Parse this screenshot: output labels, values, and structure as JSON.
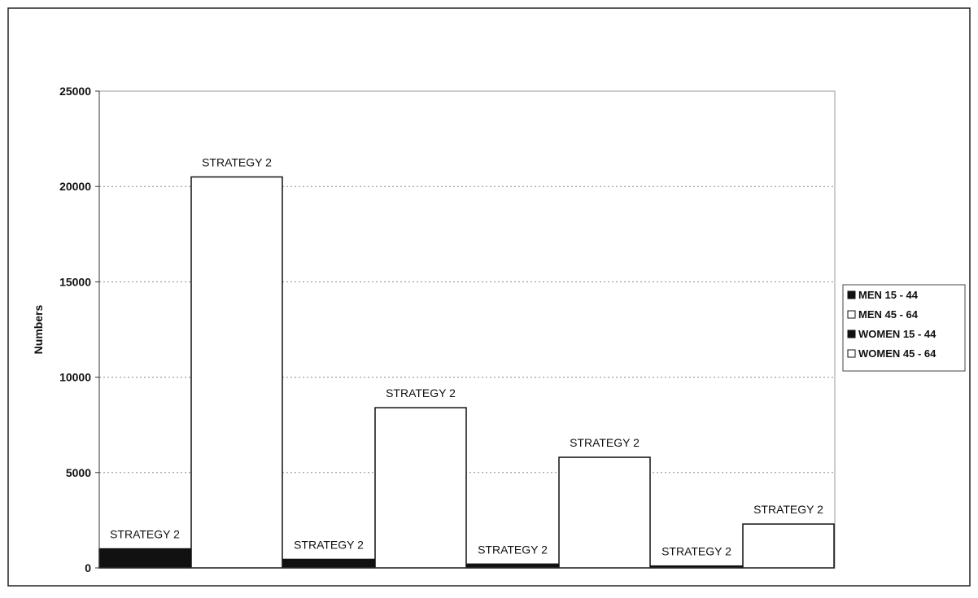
{
  "chart_data": {
    "type": "bar",
    "ylabel": "Numbers",
    "ylim": [
      0,
      25000
    ],
    "yticks": [
      0,
      5000,
      10000,
      15000,
      20000,
      25000
    ],
    "grid": true,
    "legend_position": "right",
    "series": [
      {
        "name": "MEN 15 - 44",
        "color": "#111111"
      },
      {
        "name": "MEN 45 - 64",
        "color": "#ffffff"
      },
      {
        "name": "WOMEN 15 - 44",
        "color": "#111111"
      },
      {
        "name": "WOMEN 45 - 64",
        "color": "#ffffff"
      }
    ],
    "bars": [
      {
        "series": 0,
        "value": 1000,
        "label": "STRATEGY 2"
      },
      {
        "series": 1,
        "value": 20500,
        "label": "STRATEGY 2"
      },
      {
        "series": 0,
        "value": 450,
        "label": "STRATEGY 2"
      },
      {
        "series": 1,
        "value": 8400,
        "label": "STRATEGY 2"
      },
      {
        "series": 2,
        "value": 200,
        "label": "STRATEGY 2"
      },
      {
        "series": 3,
        "value": 5800,
        "label": "STRATEGY 2"
      },
      {
        "series": 2,
        "value": 100,
        "label": "STRATEGY 2"
      },
      {
        "series": 3,
        "value": 2300,
        "label": "STRATEGY 2"
      }
    ]
  }
}
